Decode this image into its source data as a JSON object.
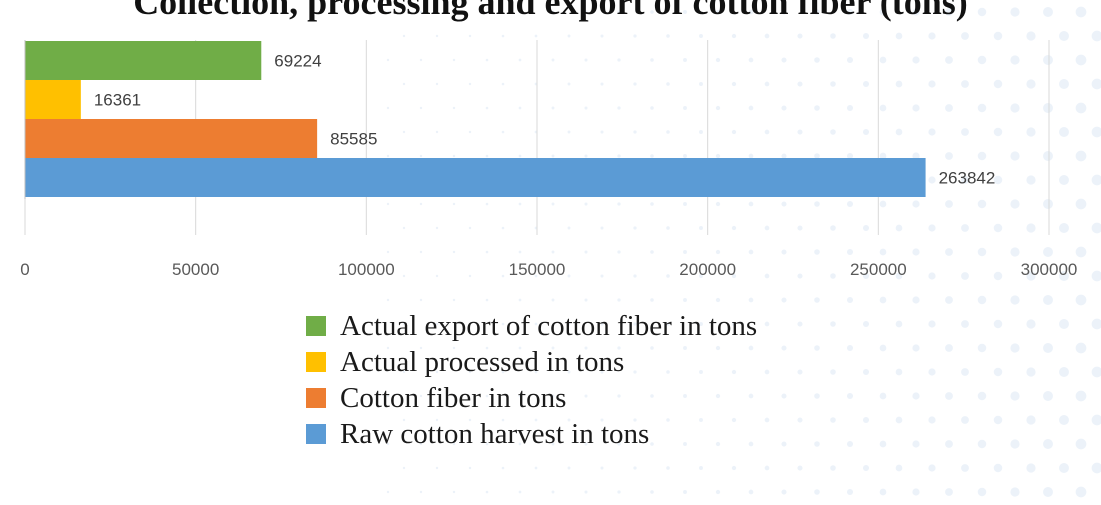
{
  "chart_data": {
    "type": "bar",
    "orientation": "horizontal",
    "title": "Collection, processing and export of cotton fiber (tons)",
    "xlim": [
      0,
      300000
    ],
    "x_ticks": [
      "0",
      "50000",
      "100000",
      "150000",
      "200000",
      "250000",
      "300000"
    ],
    "grid": true,
    "legend_position": "bottom",
    "series": [
      {
        "name": "Actual export of cotton fiber in tons",
        "value": 69224,
        "label": "69224",
        "color": "#70ad47"
      },
      {
        "name": "Actual processed in tons",
        "value": 16361,
        "label": "16361",
        "color": "#ffc000"
      },
      {
        "name": "Cotton fiber in tons",
        "value": 85585,
        "label": "85585",
        "color": "#ed7d31"
      },
      {
        "name": "Raw cotton harvest in tons",
        "value": 263842,
        "label": "263842",
        "color": "#5b9bd5"
      }
    ]
  }
}
